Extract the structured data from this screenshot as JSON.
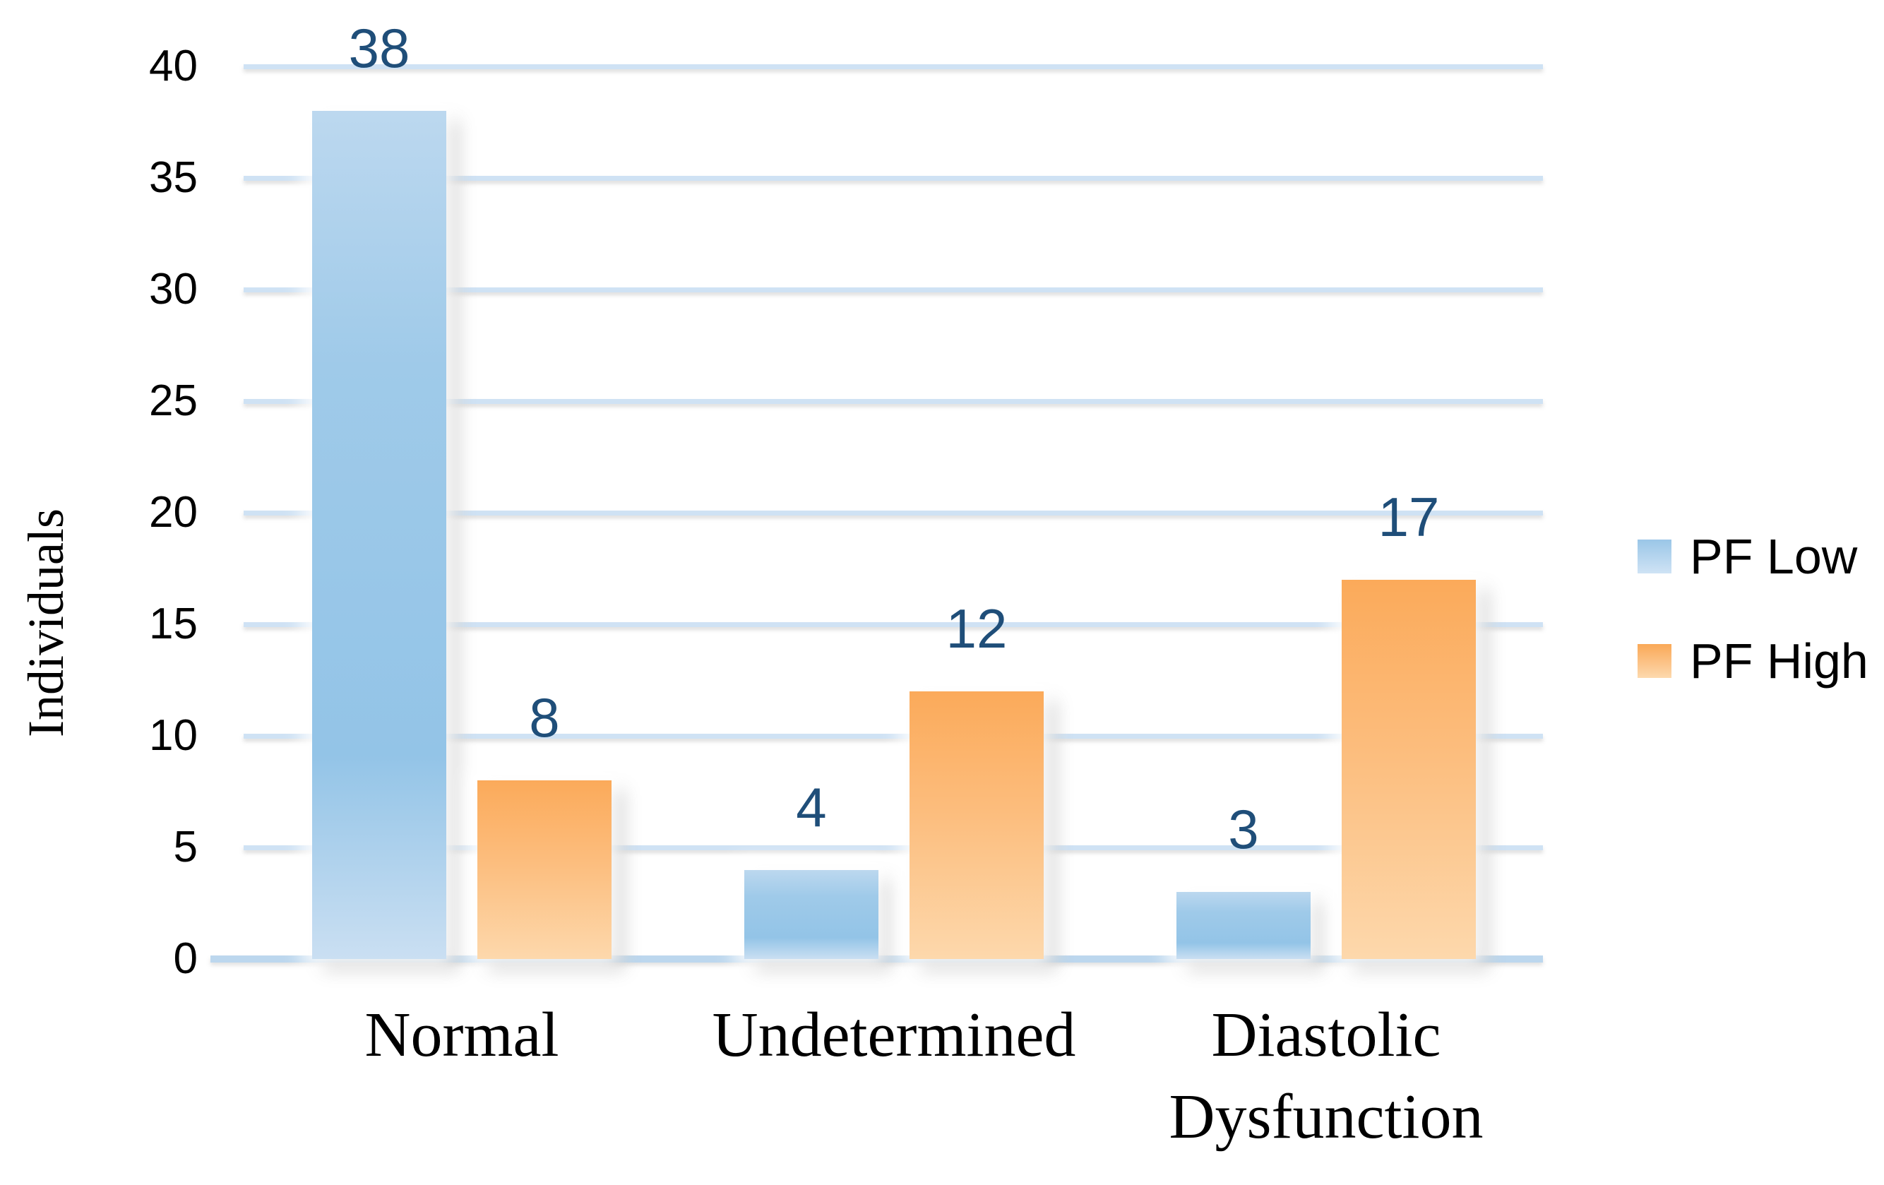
{
  "chart_data": {
    "type": "bar",
    "title": "",
    "categories": [
      "Normal",
      "Undetermined",
      "Diastolic Dysfunction"
    ],
    "series": [
      {
        "name": "PF Low",
        "values": [
          38,
          4,
          3
        ]
      },
      {
        "name": "PF High",
        "values": [
          8,
          12,
          17
        ]
      }
    ],
    "data_labels": [
      [
        38,
        8
      ],
      [
        4,
        12
      ],
      [
        3,
        17
      ]
    ],
    "xlabel": "",
    "ylabel": "Individuals",
    "ylim": [
      0,
      40
    ],
    "yticks": [
      0,
      5,
      10,
      15,
      20,
      25,
      30,
      35,
      40
    ],
    "grid": "horizontal",
    "legend_position": "right"
  },
  "colors": {
    "pf_low_top": "#bcd8ef",
    "pf_low_upper_mid": "#9fcae9",
    "pf_low_mid": "#93c4e7",
    "pf_low_bottom": "#cadff2",
    "pf_high_top": "#fbaa5a",
    "pf_high_mid": "#fcbd7d",
    "pf_high_bottom": "#fdd8ac",
    "legend_low_top": "#9ac6e7",
    "legend_low_bottom": "#cfe3f5",
    "legend_high_top": "#faa857",
    "legend_high_bottom": "#fdd9ae",
    "gridline": "#cfe2f4",
    "baseline": "#bcd7ee",
    "data_label": "#1f4e79",
    "axis_text": "#000000"
  }
}
